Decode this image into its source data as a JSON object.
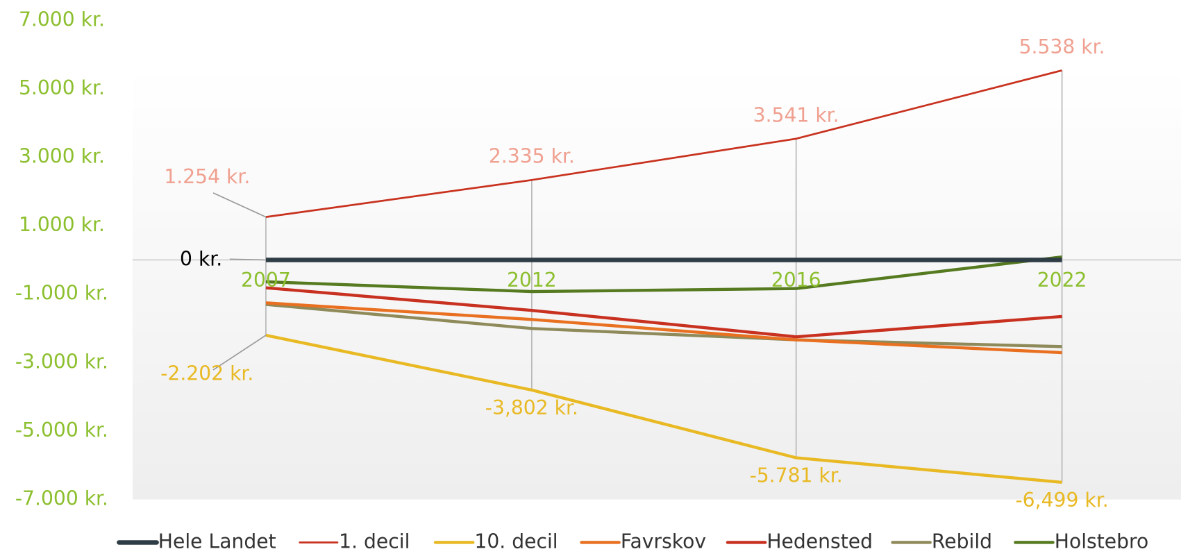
{
  "chart_data": {
    "type": "line",
    "categories": [
      "2007",
      "2012",
      "2016",
      "2022"
    ],
    "ylim": [
      -7000,
      7000
    ],
    "yticks": [
      {
        "value": -7000,
        "label": "-7.000 kr."
      },
      {
        "value": -5000,
        "label": "-5.000 kr."
      },
      {
        "value": -3000,
        "label": "-3.000 kr."
      },
      {
        "value": -1000,
        "label": "-1.000 kr."
      },
      {
        "value": 1000,
        "label": "1.000 kr."
      },
      {
        "value": 3000,
        "label": "3.000 kr."
      },
      {
        "value": 5000,
        "label": "5.000 kr."
      },
      {
        "value": 7000,
        "label": "7.000 kr."
      }
    ],
    "legend": "bottom",
    "series": [
      {
        "name": "Hele Landet",
        "color": "#2e3d45",
        "values": [
          0,
          0,
          0,
          0
        ],
        "value_labels": [
          "0 kr.",
          null,
          null,
          null
        ]
      },
      {
        "name": "1. decil",
        "color": "#c8321e",
        "values": [
          1254,
          2335,
          3541,
          5538
        ],
        "value_labels": [
          "1.254 kr.",
          "2.335 kr.",
          "3.541 kr.",
          "5.538 kr."
        ]
      },
      {
        "name": "10. decil",
        "color": "#e8b923",
        "values": [
          -2202,
          -3802,
          -5781,
          -6499
        ],
        "value_labels": [
          "-2.202 kr.",
          "-3,802 kr.",
          "-5.781 kr.",
          "-6,499 kr."
        ]
      },
      {
        "name": "Favrskov",
        "color": "#e87020",
        "values": [
          -1255,
          -1740,
          -2335,
          -2710
        ]
      },
      {
        "name": "Hedensted",
        "color": "#c83020",
        "values": [
          -815,
          -1475,
          -2247,
          -1652
        ]
      },
      {
        "name": "Rebild",
        "color": "#8f8a5a",
        "values": [
          -1300,
          -2004,
          -2335,
          -2533
        ]
      },
      {
        "name": "Holstebro",
        "color": "#557a1f",
        "values": [
          -639,
          -925,
          -837,
          88
        ]
      }
    ]
  }
}
